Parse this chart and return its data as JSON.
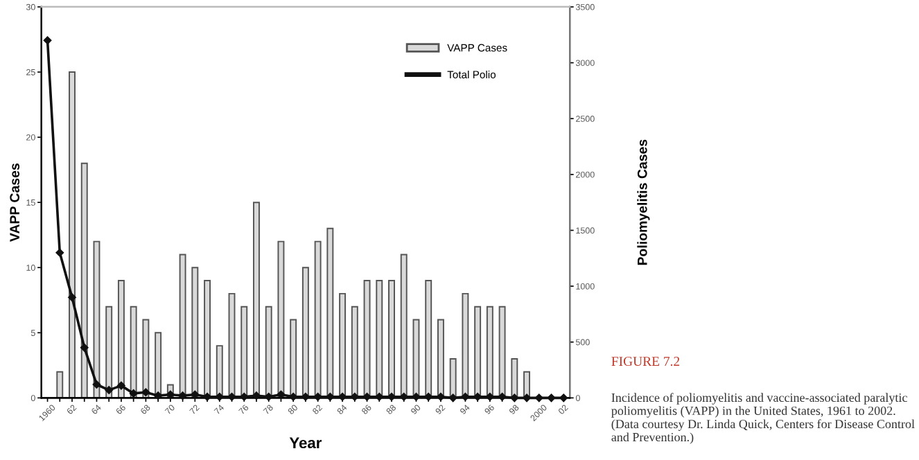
{
  "chart_data": {
    "type": "bar",
    "xlabel": "Year",
    "ylabel": "VAPP Cases",
    "y2label": "Poliomyelitis Cases",
    "categories": [
      "1960",
      null,
      "62",
      null,
      "64",
      null,
      "66",
      null,
      "68",
      null,
      "70",
      null,
      "72",
      null,
      "74",
      null,
      "76",
      null,
      "78",
      null,
      "80",
      null,
      "82",
      null,
      "84",
      null,
      "86",
      null,
      "88",
      null,
      "90",
      null,
      "92",
      null,
      "94",
      null,
      "96",
      null,
      "98",
      null,
      "2000",
      null,
      "02"
    ],
    "series": [
      {
        "name": "VAPP Cases",
        "color": "#d9d9d9",
        "values": [
          0,
          2,
          25,
          18,
          12,
          7,
          9,
          7,
          6,
          5,
          1,
          11,
          10,
          9,
          4,
          8,
          7,
          15,
          7,
          12,
          6,
          10,
          12,
          13,
          8,
          7,
          9,
          9,
          9,
          11,
          6,
          9,
          6,
          3,
          8,
          7,
          7,
          7,
          3,
          2,
          0,
          0,
          0
        ]
      },
      {
        "name": "Total Polio",
        "type": "line",
        "axis": "y2",
        "color": "#111111",
        "marker": "diamond",
        "line_style": "solid",
        "values": [
          3200,
          1300,
          900,
          450,
          120,
          70,
          110,
          40,
          50,
          20,
          30,
          20,
          30,
          10,
          10,
          10,
          10,
          20,
          10,
          30,
          10,
          10,
          10,
          10,
          10,
          10,
          10,
          10,
          10,
          10,
          10,
          10,
          10,
          0,
          10,
          10,
          10,
          10,
          0,
          0,
          0,
          0,
          0
        ]
      }
    ],
    "ylim": [
      0,
      30
    ],
    "yticks": [
      0,
      5,
      10,
      15,
      20,
      25,
      30
    ],
    "y2lim": [
      0,
      3500
    ],
    "y2ticks": [
      0,
      500,
      1000,
      1500,
      2000,
      2500,
      3000,
      3500
    ],
    "grid": false,
    "legend": "top right",
    "annotations": [
      "FIGURE 7.2",
      "Incidence of poliomyelitis and vaccine-associated paralytic poliomyelitis (VAPP) in the United States, 1961 to 2002. (Data courtesy Dr. Linda Quick, Centers for Disease Control and Prevention.)"
    ]
  }
}
